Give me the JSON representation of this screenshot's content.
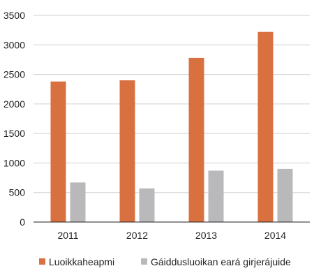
{
  "chart_data": {
    "type": "bar",
    "categories": [
      "2011",
      "2012",
      "2013",
      "2014"
    ],
    "series": [
      {
        "name": "Luoikkaheapmi",
        "values": [
          2380,
          2400,
          2780,
          3220
        ],
        "color": "#d9703f"
      },
      {
        "name": "Gáiddusluoikan eará girjerájuide",
        "values": [
          670,
          570,
          870,
          900
        ],
        "color": "#b9b9bb"
      }
    ],
    "title": "",
    "xlabel": "",
    "ylabel": "",
    "ylim": [
      0,
      3500
    ],
    "yticks": [
      0,
      500,
      1000,
      1500,
      2000,
      2500,
      3000,
      3500
    ],
    "grid": true,
    "legend": "bottom"
  }
}
